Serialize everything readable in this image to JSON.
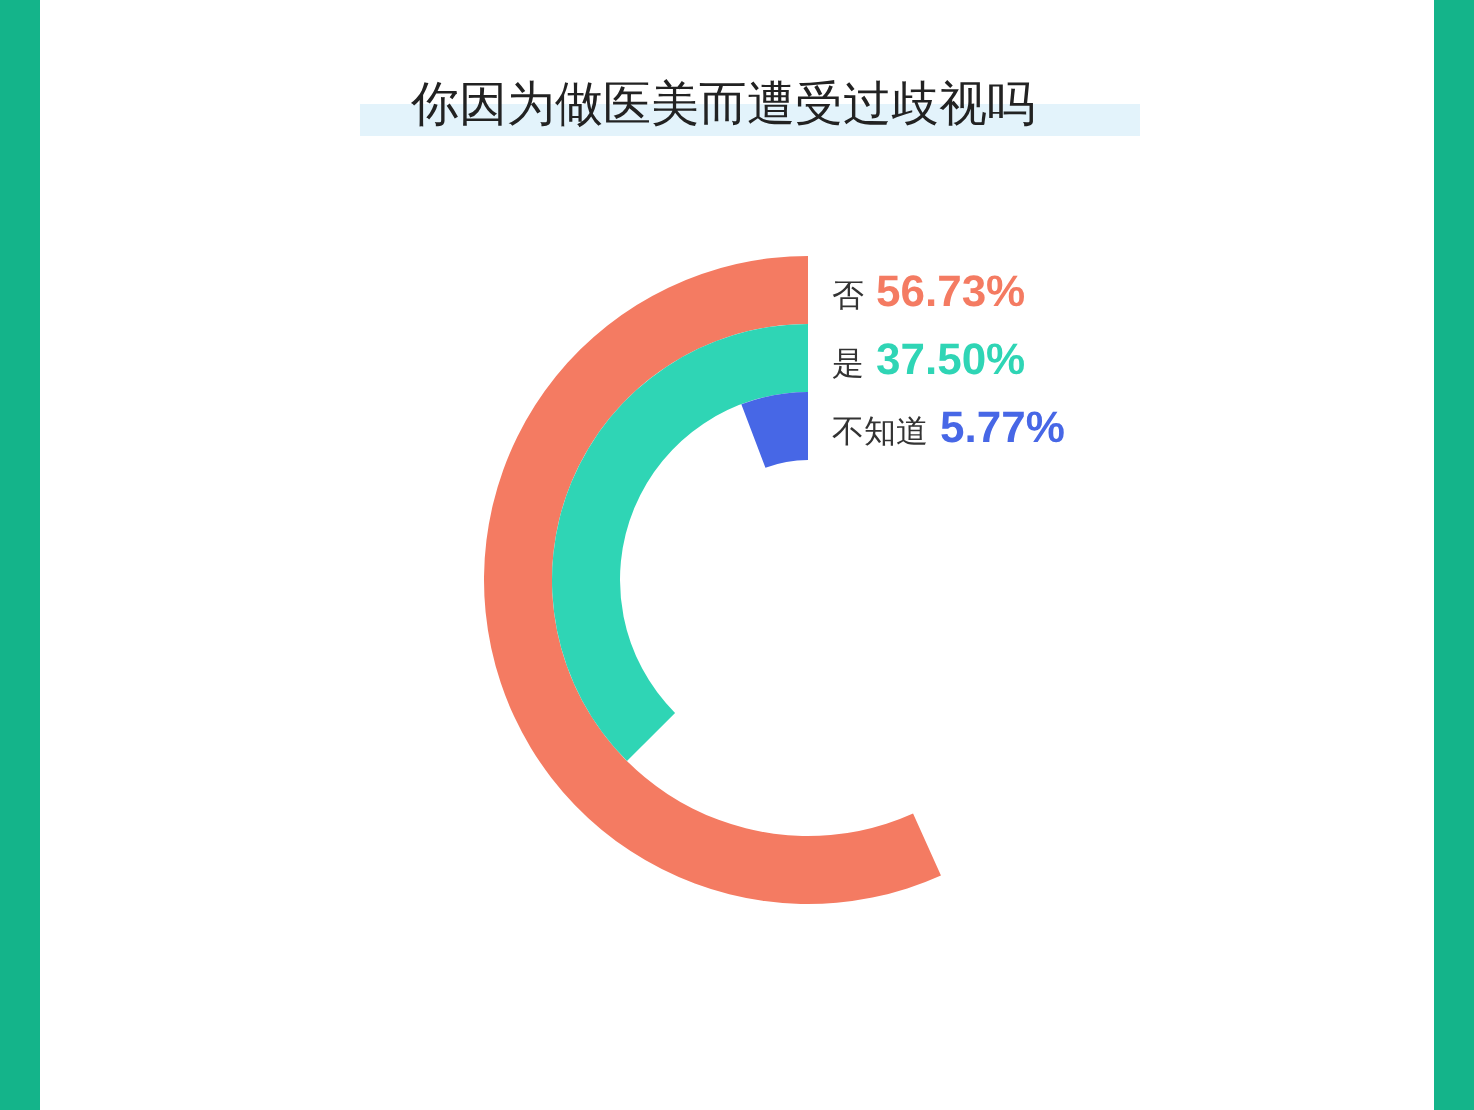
{
  "chart_data": {
    "type": "other",
    "title": "你因为做医美而遭受过歧视吗",
    "categories": [
      "否",
      "是",
      "不知道"
    ],
    "values": [
      56.73,
      37.5,
      5.77
    ],
    "value_labels": [
      "56.73%",
      "37.50%",
      "5.77%"
    ],
    "colors": [
      "#f47b62",
      "#2fd5b5",
      "#4767e6"
    ]
  }
}
